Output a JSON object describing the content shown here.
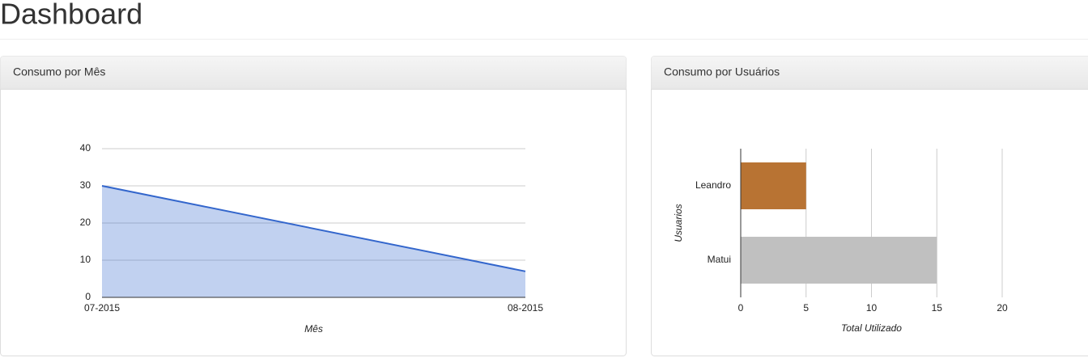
{
  "page_title": "Dashboard",
  "chart_data": [
    {
      "type": "area",
      "title": "Consumo por Mês",
      "categories": [
        "07-2015",
        "08-2015"
      ],
      "values": [
        30,
        7
      ],
      "color": "#3366cc",
      "ylim": [
        0,
        40
      ],
      "yticks": [
        0,
        10,
        20,
        30,
        40
      ],
      "x_label": "Mês",
      "grid": true
    },
    {
      "type": "hbar",
      "title": "Consumo por Usuários",
      "categories": [
        "Leandro",
        "Matui"
      ],
      "values": [
        5,
        15
      ],
      "colors": [
        "#b87333",
        "#c0c0c0"
      ],
      "xlim": [
        0,
        20
      ],
      "xticks": [
        0,
        5,
        10,
        15,
        20
      ],
      "x_label": "Total Utilizado",
      "y_label": "Usuarios",
      "grid": true
    }
  ]
}
